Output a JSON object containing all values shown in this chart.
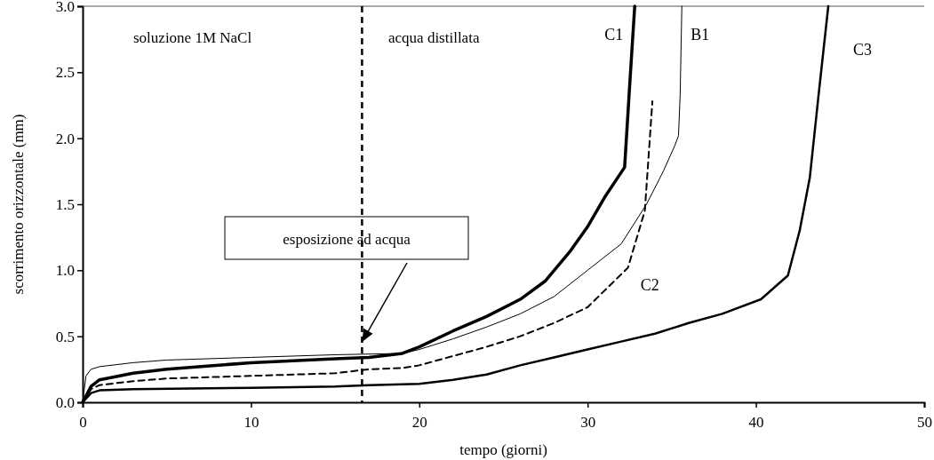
{
  "chart_data": {
    "type": "line",
    "xlabel": "tempo (giorni)",
    "ylabel": "scorrimento orizzontale (mm)",
    "xlim": [
      0,
      50
    ],
    "xticks": [
      0,
      10,
      20,
      30,
      40,
      50
    ],
    "ylim": [
      0,
      3
    ],
    "yticks": [
      {
        "value": 0,
        "label": "0.0"
      },
      {
        "value": 0.5,
        "label": "0.5"
      },
      {
        "value": 1,
        "label": "1.0"
      },
      {
        "value": 1.5,
        "label": "1.5"
      },
      {
        "value": 2,
        "label": "2.0"
      },
      {
        "value": 2.5,
        "label": "2.5"
      },
      {
        "value": 3,
        "label": "3.0"
      }
    ],
    "grid": false,
    "marker": "none",
    "series": [
      {
        "name": "C1",
        "color": "#000000",
        "line_style": "solid",
        "x": [
          0,
          0.5,
          1,
          3,
          5,
          10,
          15,
          17,
          19,
          20,
          22,
          24,
          26,
          27.5,
          29,
          30,
          31,
          32.2,
          32.5,
          32.8
        ],
        "values": [
          0,
          0.12,
          0.17,
          0.22,
          0.25,
          0.3,
          0.33,
          0.34,
          0.37,
          0.42,
          0.54,
          0.65,
          0.78,
          0.92,
          1.15,
          1.33,
          1.55,
          1.78,
          2.4,
          3.0
        ]
      },
      {
        "name": "B1",
        "color": "#000000",
        "line_style": "solid",
        "x": [
          0,
          0.2,
          0.5,
          1,
          3,
          5,
          10,
          15,
          19,
          20,
          22,
          24,
          26,
          28,
          30,
          32,
          33.5,
          34.5,
          35.2,
          35.4,
          35.5,
          35.6
        ],
        "values": [
          0,
          0.2,
          0.25,
          0.27,
          0.3,
          0.32,
          0.34,
          0.36,
          0.37,
          0.4,
          0.48,
          0.57,
          0.67,
          0.8,
          1.0,
          1.2,
          1.5,
          1.75,
          1.95,
          2.02,
          2.33,
          3.0
        ]
      },
      {
        "name": "C2",
        "color": "#000000",
        "line_style": "dashed",
        "x": [
          0,
          0.5,
          1,
          3,
          5,
          10,
          15,
          17,
          19,
          20,
          22,
          24,
          26,
          28,
          30,
          32.4,
          33.4,
          33.85
        ],
        "values": [
          0,
          0.1,
          0.13,
          0.16,
          0.18,
          0.2,
          0.22,
          0.25,
          0.26,
          0.28,
          0.35,
          0.42,
          0.5,
          0.6,
          0.72,
          1.02,
          1.45,
          2.28
        ]
      },
      {
        "name": "C3",
        "color": "#000000",
        "line_style": "solid",
        "x": [
          0,
          0.5,
          1,
          3,
          10,
          15,
          17,
          20,
          22,
          24,
          26,
          28,
          30,
          32,
          34,
          36,
          38,
          40.3,
          41.9,
          42.6,
          43.2,
          43.7,
          44.3
        ],
        "values": [
          0,
          0.07,
          0.09,
          0.1,
          0.11,
          0.12,
          0.13,
          0.14,
          0.17,
          0.21,
          0.28,
          0.34,
          0.4,
          0.46,
          0.52,
          0.6,
          0.67,
          0.78,
          0.96,
          1.3,
          1.7,
          2.3,
          3.0
        ]
      }
    ],
    "ref_lines": [
      {
        "axis": "x",
        "value": 16.6,
        "label": null,
        "color": "#000000",
        "line_style": "dashed"
      }
    ],
    "annotations": [
      "soluzione 1M NaCl",
      "acqua distillata",
      "esposizione ad acqua"
    ]
  }
}
